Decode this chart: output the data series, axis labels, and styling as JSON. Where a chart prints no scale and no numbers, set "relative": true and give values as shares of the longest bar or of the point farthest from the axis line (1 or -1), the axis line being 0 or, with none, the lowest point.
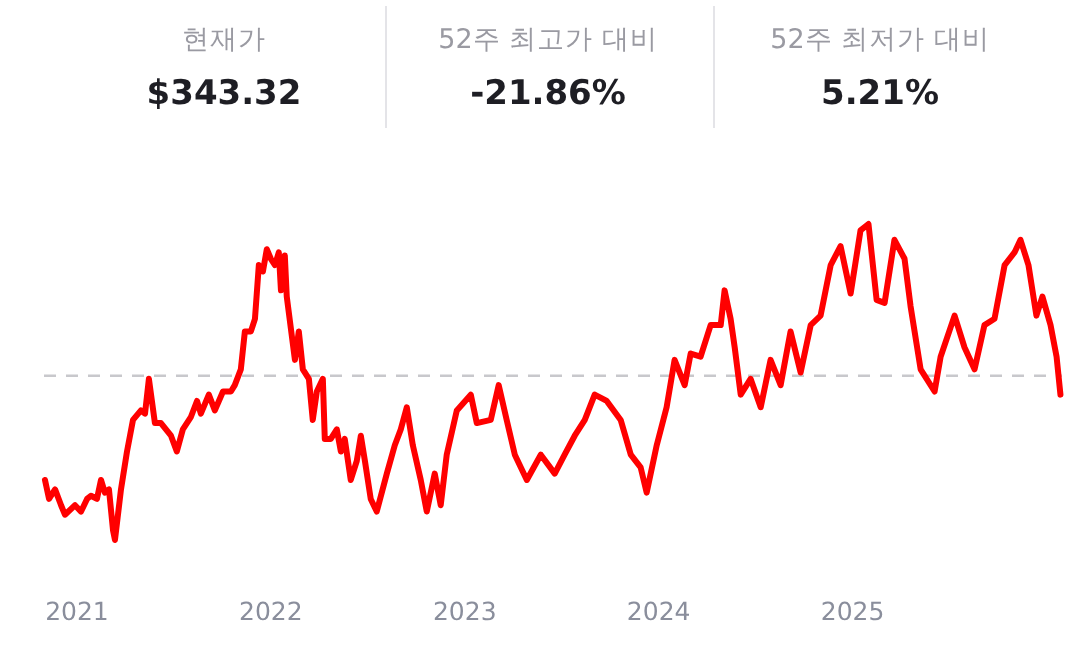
{
  "chart_data": {
    "type": "line",
    "relative": true,
    "annotations": [
      "현재가",
      "$343.32",
      "52주 최고가 대비",
      "-21.86%",
      "52주 최저가 대비",
      "5.21%"
    ],
    "xlim": [
      2020.83,
      2026.08
    ],
    "xticks": [
      2021,
      2022,
      2023,
      2024,
      2025
    ],
    "ref_lines": [
      {
        "axis": "y",
        "value": 0.52,
        "color": "#c8c8cc",
        "line_style": "dashed"
      }
    ],
    "series": [
      {
        "color": "#ff0000",
        "x": [
          2020.835,
          2020.856,
          2020.887,
          2020.918,
          2020.938,
          2020.99,
          2021.021,
          2021.052,
          2021.072,
          2021.103,
          2021.124,
          2021.144,
          2021.165,
          2021.186,
          2021.196,
          2021.227,
          2021.258,
          2021.289,
          2021.33,
          2021.351,
          2021.371,
          2021.402,
          2021.433,
          2021.485,
          2021.515,
          2021.546,
          2021.588,
          2021.619,
          2021.639,
          2021.68,
          2021.711,
          2021.753,
          2021.794,
          2021.814,
          2021.845,
          2021.866,
          2021.897,
          2021.918,
          2021.938,
          2021.959,
          2021.979,
          2022.0,
          2022.021,
          2022.041,
          2022.052,
          2022.072,
          2022.082,
          2022.124,
          2022.144,
          2022.165,
          2022.196,
          2022.216,
          2022.237,
          2022.268,
          2022.278,
          2022.309,
          2022.34,
          2022.361,
          2022.381,
          2022.412,
          2022.443,
          2022.464,
          2022.485,
          2022.515,
          2022.546,
          2022.598,
          2022.639,
          2022.67,
          2022.701,
          2022.732,
          2022.773,
          2022.804,
          2022.845,
          2022.876,
          2022.907,
          2022.959,
          2023.031,
          2023.062,
          2023.134,
          2023.175,
          2023.216,
          2023.258,
          2023.32,
          2023.392,
          2023.464,
          2023.515,
          2023.567,
          2023.619,
          2023.67,
          2023.732,
          2023.804,
          2023.856,
          2023.907,
          2023.938,
          2023.99,
          2024.041,
          2024.082,
          2024.134,
          2024.165,
          2024.216,
          2024.268,
          2024.32,
          2024.34,
          2024.371,
          2024.392,
          2024.423,
          2024.474,
          2024.526,
          2024.577,
          2024.629,
          2024.68,
          2024.732,
          2024.784,
          2024.835,
          2024.887,
          2024.938,
          2024.99,
          2025.041,
          2025.082,
          2025.124,
          2025.165,
          2025.216,
          2025.268,
          2025.299,
          2025.351,
          2025.423,
          2025.454,
          2025.526,
          2025.577,
          2025.629,
          2025.68,
          2025.732,
          2025.784,
          2025.835,
          2025.866,
          2025.907,
          2025.948,
          2025.979,
          2026.021,
          2026.052,
          2026.072
        ],
        "values": [
          0.19,
          0.13,
          0.16,
          0.11,
          0.08,
          0.11,
          0.09,
          0.13,
          0.14,
          0.13,
          0.19,
          0.15,
          0.16,
          0.03,
          0.0,
          0.16,
          0.28,
          0.38,
          0.41,
          0.4,
          0.51,
          0.37,
          0.37,
          0.33,
          0.28,
          0.35,
          0.39,
          0.44,
          0.4,
          0.46,
          0.41,
          0.47,
          0.47,
          0.49,
          0.54,
          0.66,
          0.66,
          0.7,
          0.87,
          0.85,
          0.92,
          0.89,
          0.87,
          0.91,
          0.79,
          0.9,
          0.77,
          0.57,
          0.66,
          0.54,
          0.51,
          0.38,
          0.47,
          0.51,
          0.32,
          0.32,
          0.35,
          0.28,
          0.32,
          0.19,
          0.25,
          0.33,
          0.25,
          0.13,
          0.09,
          0.21,
          0.3,
          0.35,
          0.42,
          0.3,
          0.19,
          0.09,
          0.21,
          0.11,
          0.27,
          0.41,
          0.46,
          0.37,
          0.38,
          0.49,
          0.38,
          0.27,
          0.19,
          0.27,
          0.21,
          0.27,
          0.33,
          0.38,
          0.46,
          0.44,
          0.38,
          0.27,
          0.23,
          0.15,
          0.3,
          0.42,
          0.57,
          0.49,
          0.59,
          0.58,
          0.68,
          0.68,
          0.79,
          0.7,
          0.61,
          0.46,
          0.51,
          0.42,
          0.57,
          0.49,
          0.66,
          0.53,
          0.68,
          0.71,
          0.87,
          0.93,
          0.78,
          0.98,
          1.0,
          0.76,
          0.75,
          0.95,
          0.89,
          0.74,
          0.54,
          0.47,
          0.58,
          0.71,
          0.61,
          0.54,
          0.68,
          0.7,
          0.87,
          0.91,
          0.95,
          0.87,
          0.71,
          0.77,
          0.68,
          0.58,
          0.46
        ]
      }
    ]
  }
}
